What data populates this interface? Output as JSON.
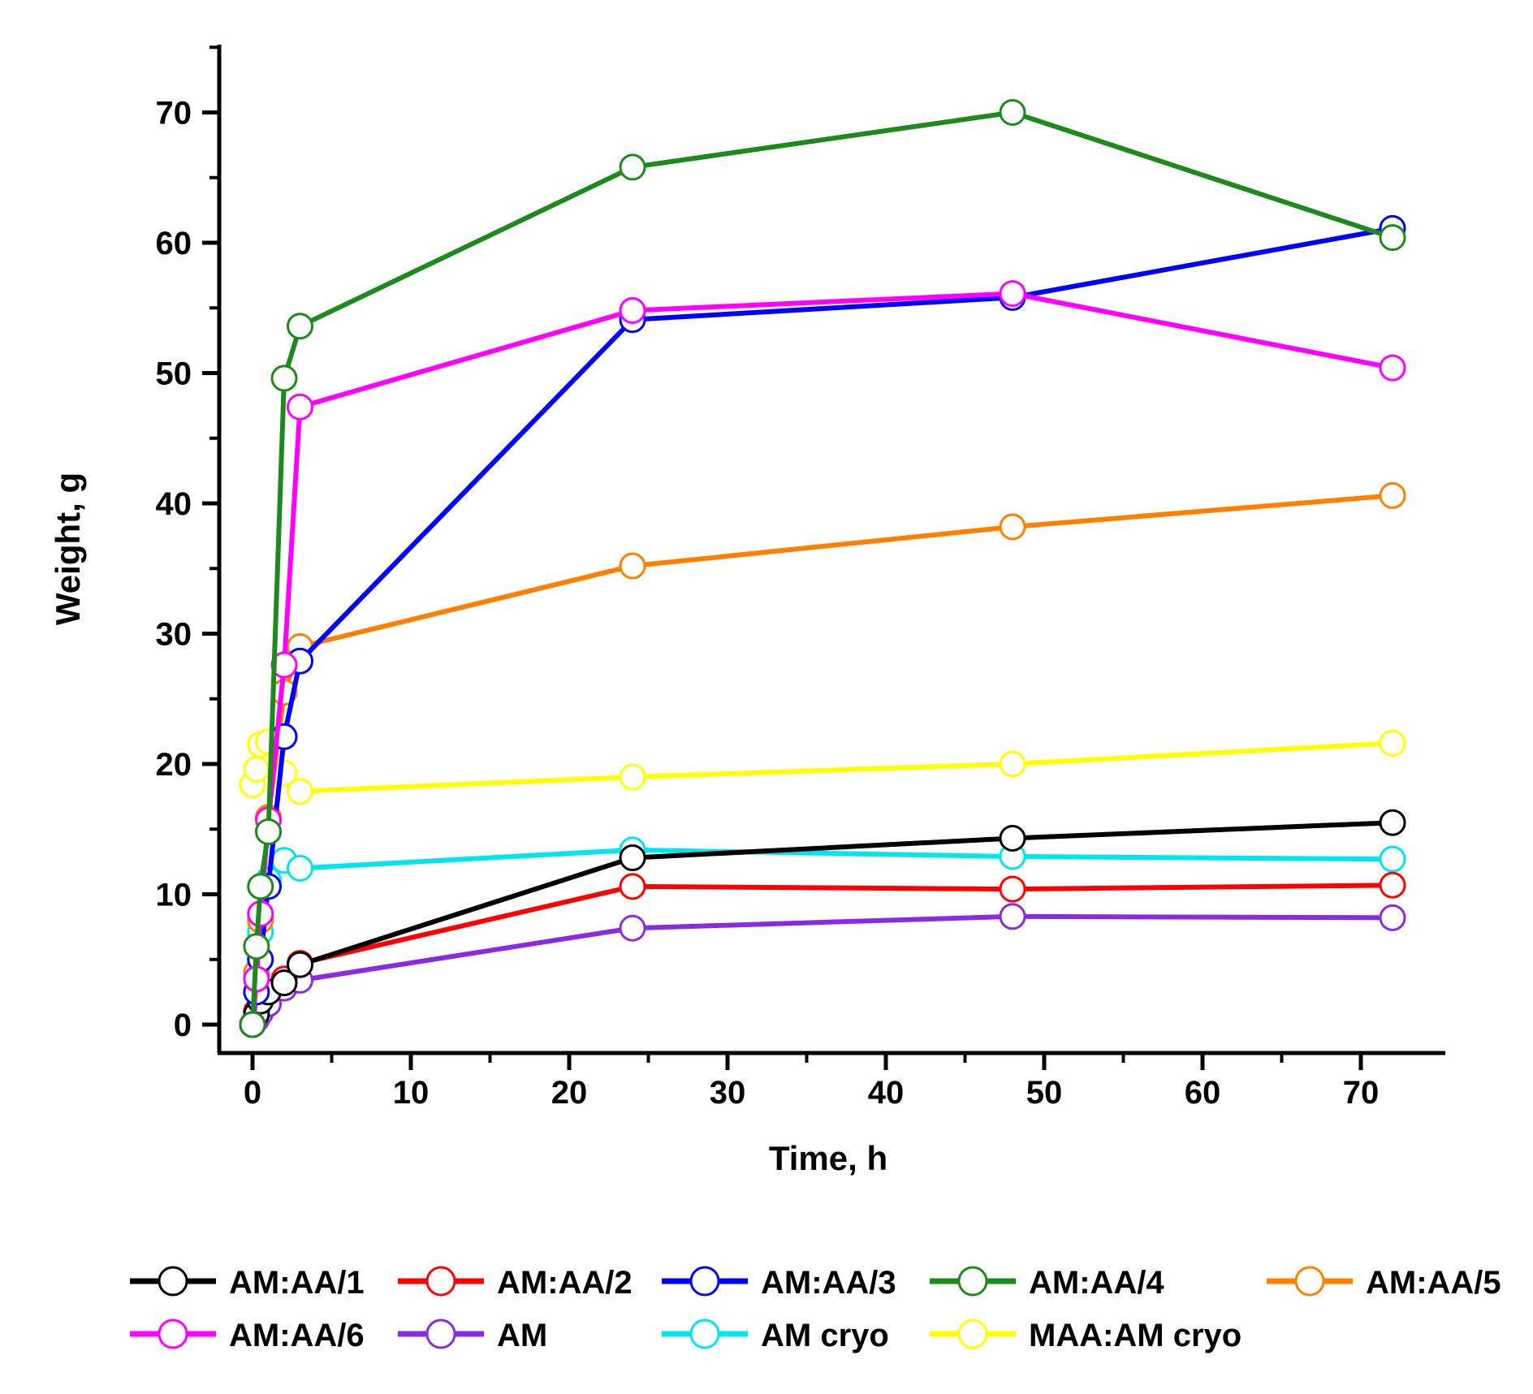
{
  "chart_data": {
    "type": "line",
    "title": "",
    "xlabel": "Time, h",
    "ylabel": "Weight, g",
    "xlim": [
      -2,
      75
    ],
    "ylim": [
      -2,
      75
    ],
    "xticks": [
      0,
      10,
      20,
      30,
      40,
      50,
      60,
      70
    ],
    "yticks": [
      0,
      10,
      20,
      30,
      40,
      50,
      60,
      70
    ],
    "x": [
      0,
      0.25,
      0.5,
      1,
      2,
      3,
      24,
      48,
      72
    ],
    "markers": "open-circle",
    "legend_position": "bottom",
    "series": [
      {
        "name": "AM:AA/1",
        "color": "#000000",
        "values": [
          0,
          0.8,
          1.8,
          2.5,
          3.2,
          4.6,
          12.8,
          14.3,
          15.5
        ]
      },
      {
        "name": "AM:AA/2",
        "color": "#ff0000",
        "values": [
          0,
          1.0,
          2.0,
          2.5,
          3.5,
          4.7,
          10.6,
          10.4,
          10.7
        ]
      },
      {
        "name": "AM:AA/3",
        "color": "#0000ff",
        "values": [
          0,
          2.5,
          5.0,
          10.6,
          22.1,
          27.9,
          54.1,
          55.8,
          61.1
        ]
      },
      {
        "name": "AM:AA/4",
        "color": "#1e8a1e",
        "values": [
          0,
          6.0,
          10.6,
          14.8,
          49.6,
          53.6,
          65.8,
          70.0,
          60.4
        ]
      },
      {
        "name": "AM:AA/5",
        "color": "#ff8000",
        "values": [
          0,
          4.0,
          8.0,
          15.9,
          25.5,
          29.0,
          35.2,
          38.2,
          40.6
        ]
      },
      {
        "name": "AM:AA/6",
        "color": "#ff00ff",
        "values": [
          0,
          3.5,
          8.5,
          15.7,
          27.6,
          47.4,
          54.8,
          56.1,
          50.4
        ]
      },
      {
        "name": "AM",
        "color": "#8a2be2",
        "values": [
          0,
          0.4,
          0.9,
          1.6,
          2.8,
          3.4,
          7.4,
          8.3,
          8.2
        ]
      },
      {
        "name": "AM cryo",
        "color": "#00e5ee",
        "values": [
          0,
          3.9,
          7.1,
          11.1,
          12.6,
          12.0,
          13.4,
          12.9,
          12.7
        ]
      },
      {
        "name": "MAA:AM cryo",
        "color": "#ffff00",
        "values": [
          18.4,
          19.6,
          21.5,
          21.7,
          19.3,
          17.9,
          19.0,
          20.0,
          21.6
        ]
      }
    ]
  }
}
